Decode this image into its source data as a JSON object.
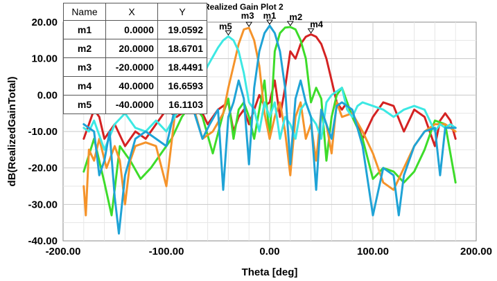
{
  "chart_data": {
    "type": "line",
    "title": "Realized Gain Plot 2",
    "xlabel": "Theta [deg]",
    "ylabel": "dB(RealizedGainTotal)",
    "xlim": [
      -200,
      200
    ],
    "ylim": [
      -40,
      20
    ],
    "xticks": [
      "-200.00",
      "-100.00",
      "0.00",
      "100.00",
      "200.00"
    ],
    "yticks": [
      "20.00",
      "10.00",
      "0.00",
      "-10.00",
      "-20.00",
      "-30.00",
      "-40.00"
    ],
    "grid": true,
    "series": [
      {
        "name": "m1",
        "color": "#1fa3d6",
        "x": [
          -180,
          -170,
          -165,
          -160,
          -155,
          -150,
          -146,
          -140,
          -130,
          -120,
          -110,
          -100,
          -92,
          -85,
          -75,
          -65,
          -58,
          -50,
          -45,
          -40,
          -35,
          -30,
          -25,
          -20,
          -15,
          -10,
          -5,
          0,
          5,
          10,
          15,
          20,
          25,
          30,
          35,
          40,
          45,
          50,
          55,
          60,
          65,
          70,
          80,
          90,
          100,
          110,
          120,
          125,
          130,
          140,
          150,
          160,
          165,
          170,
          180
        ],
        "y": [
          -8,
          -10,
          -22,
          -18,
          -10,
          -28,
          -38,
          -22,
          -12,
          -10,
          -12,
          -14,
          -4,
          -2,
          -3,
          -12,
          -8,
          -4,
          -26,
          -6,
          -2,
          4,
          -1,
          -19,
          2,
          12,
          17,
          19.06,
          17,
          12,
          2,
          -19,
          -1,
          4,
          -2,
          -6,
          -26,
          -4,
          -8,
          -12,
          -3,
          -2,
          -4,
          -14,
          -33,
          -20,
          -22,
          -33,
          -22,
          -14,
          -10,
          -9,
          -22,
          -9,
          -9
        ]
      },
      {
        "name": "m2",
        "color": "#3ddc2a",
        "x": [
          -180,
          -170,
          -160,
          -153,
          -145,
          -135,
          -125,
          -115,
          -105,
          -95,
          -85,
          -75,
          -65,
          -55,
          -45,
          -40,
          -35,
          -30,
          -25,
          -20,
          -15,
          -10,
          -5,
          0,
          5,
          10,
          15,
          20,
          25,
          30,
          35,
          40,
          45,
          50,
          55,
          60,
          65,
          70,
          80,
          90,
          100,
          110,
          120,
          130,
          140,
          150,
          160,
          170,
          180
        ],
        "y": [
          -21,
          -12,
          -24,
          -33,
          -14,
          -18,
          -23,
          -20,
          -16,
          -12,
          -6,
          -2,
          -6,
          -16,
          -5,
          -1,
          -12,
          -4,
          -2,
          -6,
          -12,
          -4,
          4,
          -12,
          12,
          17,
          18.5,
          18.67,
          18,
          15,
          10,
          -2,
          2,
          -1,
          -18,
          -6,
          0,
          2,
          -6,
          -12,
          -23,
          -20,
          -21,
          -24,
          -21,
          -15,
          -7,
          -8,
          -24
        ]
      },
      {
        "name": "m3",
        "color": "#f5932a",
        "x": [
          -180,
          -178,
          -175,
          -170,
          -165,
          -158,
          -150,
          -145,
          -140,
          -135,
          -130,
          -120,
          -110,
          -100,
          -92,
          -85,
          -75,
          -65,
          -55,
          -45,
          -40,
          -35,
          -30,
          -25,
          -20,
          -15,
          -10,
          -5,
          0,
          5,
          10,
          15,
          20,
          25,
          30,
          35,
          40,
          45,
          50,
          55,
          60,
          65,
          70,
          80,
          90,
          100,
          110,
          120,
          130,
          140,
          150,
          160,
          170,
          180
        ],
        "y": [
          -25,
          -33,
          -15,
          -18,
          -12,
          -20,
          -14,
          -18,
          -30,
          -18,
          -14,
          -13,
          -14,
          -25,
          -6,
          0,
          -2,
          -12,
          -10,
          -5,
          2,
          8,
          14,
          18,
          18.45,
          15,
          8,
          -5,
          -12,
          -6,
          -2,
          -10,
          -22,
          -6,
          -2,
          -12,
          -8,
          -18,
          -4,
          -8,
          -16,
          -2,
          -6,
          -5,
          -10,
          -16,
          -24,
          -26,
          -20,
          -14,
          -10,
          -8,
          -8,
          -10
        ]
      },
      {
        "name": "m4",
        "color": "#d42222",
        "x": [
          -180,
          -175,
          -170,
          -165,
          -160,
          -150,
          -140,
          -130,
          -120,
          -110,
          -100,
          -90,
          -80,
          -70,
          -60,
          -50,
          -40,
          -35,
          -30,
          -25,
          -20,
          -15,
          -10,
          -5,
          0,
          5,
          10,
          15,
          20,
          25,
          30,
          35,
          40,
          45,
          50,
          55,
          60,
          65,
          70,
          75,
          80,
          85,
          90,
          100,
          110,
          120,
          130,
          140,
          150,
          160,
          165,
          170,
          175,
          180
        ],
        "y": [
          -12,
          -8,
          -4,
          -6,
          -12,
          -8,
          -14,
          -10,
          -12,
          -8,
          -4,
          -6,
          -4,
          -2,
          -8,
          -4,
          -2,
          -10,
          -6,
          -4,
          -8,
          -4,
          0,
          -3,
          -2,
          4,
          -6,
          2,
          12,
          10,
          14,
          16,
          16.66,
          16,
          14,
          10,
          4,
          -2,
          -4,
          -2,
          -6,
          -8,
          -12,
          -6,
          -2,
          -3,
          -10,
          -4,
          -6,
          -14,
          -7,
          -5,
          -7,
          -12
        ]
      },
      {
        "name": "m5",
        "color": "#3de8e3",
        "x": [
          -180,
          -175,
          -170,
          -160,
          -150,
          -140,
          -130,
          -120,
          -110,
          -100,
          -90,
          -80,
          -70,
          -60,
          -50,
          -45,
          -40,
          -35,
          -30,
          -25,
          -20,
          -15,
          -10,
          -5,
          0,
          5,
          10,
          15,
          20,
          25,
          30,
          35,
          40,
          45,
          50,
          55,
          60,
          65,
          70,
          75,
          80,
          85,
          90,
          100,
          110,
          120,
          130,
          140,
          150,
          160,
          165,
          170,
          175,
          180
        ],
        "y": [
          -9,
          -10,
          -7,
          -15,
          -8,
          -5,
          -9,
          -10,
          -7,
          -10,
          -5,
          -4,
          2,
          8,
          13,
          15,
          16.11,
          15,
          12,
          6,
          -2,
          -4,
          -10,
          -2,
          -6,
          -2,
          -12,
          -6,
          -8,
          -12,
          -4,
          -2,
          -6,
          -8,
          -12,
          -2,
          0,
          1,
          2,
          -4,
          -6,
          -3,
          -2,
          -3,
          -4,
          -6,
          -4,
          -3,
          -4,
          -10,
          -8,
          -9,
          -8,
          -9
        ]
      }
    ],
    "markers": [
      {
        "name": "m1",
        "x": "0.0000",
        "y": "19.0592"
      },
      {
        "name": "m2",
        "x": "20.0000",
        "y": "18.6701"
      },
      {
        "name": "m3",
        "x": "-20.0000",
        "y": "18.4491"
      },
      {
        "name": "m4",
        "x": "40.0000",
        "y": "16.6593"
      },
      {
        "name": "m5",
        "x": "-40.0000",
        "y": "16.1103"
      }
    ],
    "marker_table_headers": [
      "Name",
      "X",
      "Y"
    ]
  }
}
